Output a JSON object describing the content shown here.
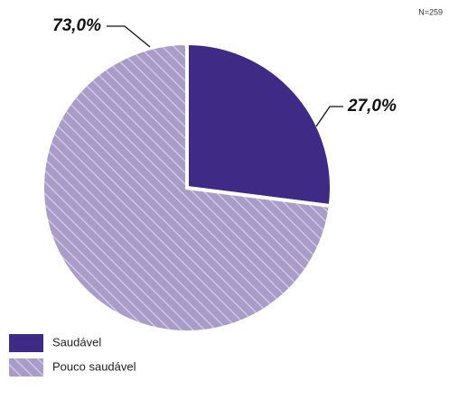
{
  "chart_data": {
    "type": "pie",
    "annotation": "N=259",
    "categories": [
      "Saudável",
      "Pouco saudável"
    ],
    "values": [
      27.0,
      73.0
    ],
    "value_labels": [
      "27,0%",
      "73,0%"
    ],
    "colors": [
      "#3f2a85",
      "#a99cc9"
    ],
    "hatch": [
      false,
      true
    ]
  }
}
